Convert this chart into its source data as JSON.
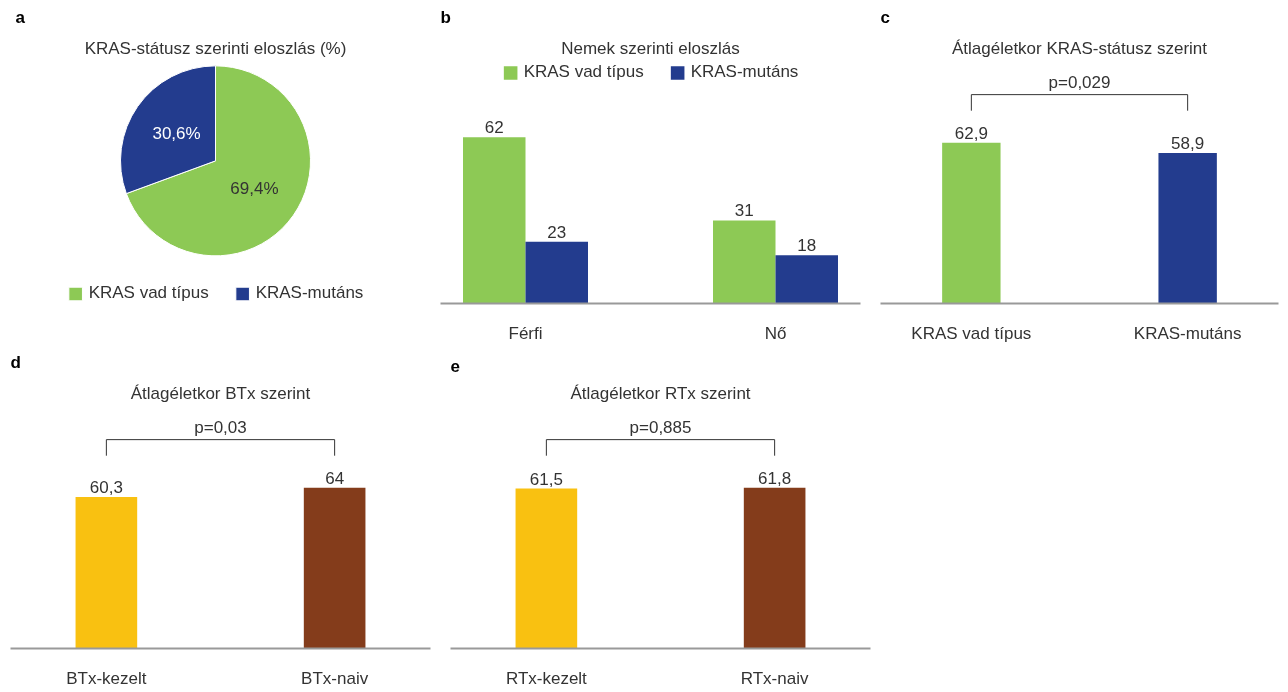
{
  "chart_data": [
    {
      "type": "pie",
      "title": "KRAS-státusz szerinti eloszlás (%)",
      "annotations": [
        "a"
      ],
      "categories": [
        "KRAS vad típus",
        "KRAS-mutáns"
      ],
      "values": [
        69.4,
        30.6
      ],
      "colors": [
        "#8dc955",
        "#233c8e"
      ],
      "value_labels": [
        "69,4%",
        "30,6%"
      ],
      "legend": "bottom"
    },
    {
      "type": "bar",
      "title": "Nemek szerinti eloszlás",
      "annotations": [
        "b"
      ],
      "categories": [
        "Férfi",
        "Nő"
      ],
      "series": [
        {
          "name": "KRAS vad típus",
          "color": "#8dc955",
          "values": [
            62,
            31
          ]
        },
        {
          "name": "KRAS-mutáns",
          "color": "#233c8e",
          "values": [
            23,
            18
          ]
        }
      ],
      "data_labels": true,
      "legend": "top"
    },
    {
      "type": "bar",
      "title": "Átlagéletkor KRAS-státusz szerint",
      "annotations": [
        "c",
        "p=0,029"
      ],
      "categories": [
        "KRAS vad típus",
        "KRAS-mutáns"
      ],
      "values": [
        62.9,
        58.9
      ],
      "colors": [
        "#8dc955",
        "#233c8e"
      ],
      "value_labels": [
        "62,9",
        "58,9"
      ]
    },
    {
      "type": "bar",
      "title": "Átlagéletkor BTx szerint",
      "annotations": [
        "d",
        "p=0,03"
      ],
      "categories": [
        "BTx-kezelt",
        "BTx-naiv"
      ],
      "values": [
        60.3,
        64
      ],
      "colors": [
        "#f9c111",
        "#843c1b"
      ],
      "value_labels": [
        "60,3",
        "64"
      ]
    },
    {
      "type": "bar",
      "title": "Átlagéletkor RTx szerint",
      "annotations": [
        "e",
        "p=0,885"
      ],
      "categories": [
        "RTx-kezelt",
        "RTx-naiv"
      ],
      "values": [
        61.5,
        61.8
      ],
      "colors": [
        "#f9c111",
        "#843c1b"
      ],
      "value_labels": [
        "61,5",
        "61,8"
      ]
    }
  ]
}
